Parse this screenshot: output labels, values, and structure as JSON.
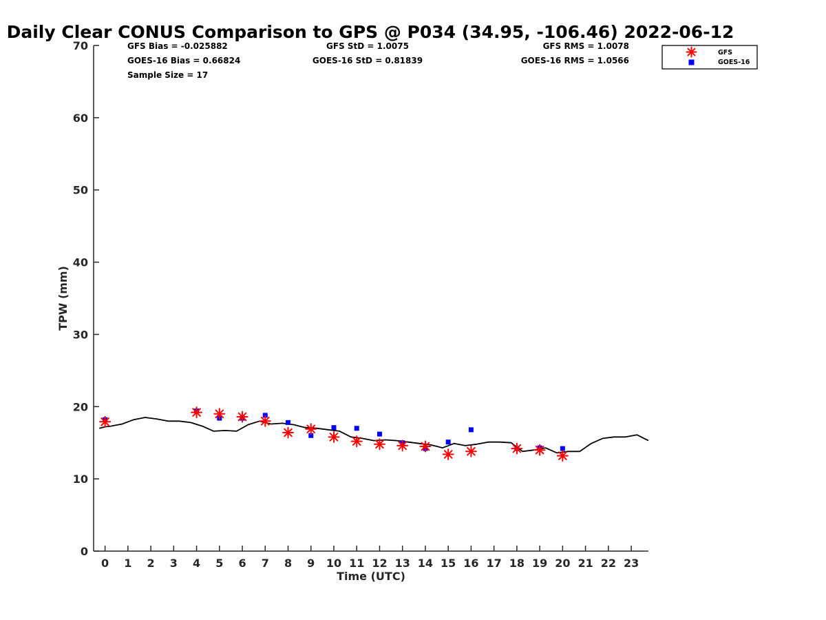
{
  "chart_data": {
    "type": "scatter",
    "title": "Daily Clear CONUS Comparison to GPS @ P034 (34.95, -106.46) 2022-06-12",
    "xlabel": "Time (UTC)",
    "ylabel": "TPW (mm)",
    "xlim": [
      -0.5,
      23.75
    ],
    "ylim": [
      0,
      70
    ],
    "x_ticks": [
      0,
      1,
      2,
      3,
      4,
      5,
      6,
      7,
      8,
      9,
      10,
      11,
      12,
      13,
      14,
      15,
      16,
      17,
      18,
      19,
      20,
      21,
      22,
      23
    ],
    "y_ticks": [
      0,
      10,
      20,
      30,
      40,
      50,
      60,
      70
    ],
    "grid": false,
    "legend_position": "top-right",
    "stats": {
      "gfs_bias": "GFS Bias = -0.025882",
      "goes_bias": "GOES-16 Bias = 0.66824",
      "sample_size": "Sample Size = 17",
      "gfs_std": "GFS StD = 1.0075",
      "goes_std": "GOES-16 StD = 0.81839",
      "gfs_rms": "GFS RMS = 1.0078",
      "goes_rms": "GOES-16 RMS = 1.0566"
    },
    "series": [
      {
        "name": "GFS",
        "marker": "asterisk",
        "color": "#ff0000",
        "x": [
          0,
          4,
          5,
          6,
          7,
          8,
          9,
          10,
          11,
          12,
          13,
          14,
          15,
          16,
          18,
          19,
          20
        ],
        "y": [
          17.9,
          19.2,
          19.0,
          18.6,
          18.0,
          16.4,
          16.9,
          15.8,
          15.2,
          14.8,
          14.6,
          14.5,
          13.4,
          13.8,
          14.2,
          14.0,
          13.2
        ]
      },
      {
        "name": "GOES-16",
        "marker": "square",
        "color": "#0000ff",
        "x": [
          0,
          4,
          5,
          6,
          7,
          8,
          9,
          10,
          11,
          12,
          13,
          14,
          15,
          16,
          18,
          19,
          20
        ],
        "y": [
          18.2,
          19.4,
          18.4,
          18.4,
          18.8,
          17.8,
          16.0,
          17.1,
          17.0,
          16.2,
          15.0,
          14.2,
          15.1,
          16.8,
          14.2,
          14.3,
          14.2
        ]
      }
    ],
    "gps_line": {
      "color": "#000000",
      "x": [
        -0.25,
        0,
        0.25,
        0.75,
        1.25,
        1.75,
        2.25,
        2.75,
        3.25,
        3.75,
        4.25,
        4.75,
        5.25,
        5.75,
        6.25,
        6.75,
        7.25,
        7.75,
        8.25,
        8.75,
        9.25,
        9.75,
        10.25,
        10.75,
        11.25,
        11.75,
        12.25,
        12.75,
        13.25,
        13.75,
        14.25,
        14.75,
        15.25,
        15.75,
        16.25,
        16.75,
        17.25,
        17.75,
        18.25,
        18.75,
        19.25,
        19.75,
        20.25,
        20.75,
        21.25,
        21.75,
        22.25,
        22.75,
        23.25,
        23.75
      ],
      "y": [
        17.0,
        17.2,
        17.3,
        17.6,
        18.2,
        18.5,
        18.3,
        18.0,
        18.0,
        17.8,
        17.3,
        16.6,
        16.7,
        16.6,
        17.5,
        18.0,
        17.6,
        17.7,
        17.5,
        17.1,
        17.0,
        16.8,
        16.6,
        15.8,
        15.6,
        15.3,
        15.4,
        15.3,
        15.1,
        14.9,
        14.7,
        14.3,
        14.9,
        14.6,
        14.8,
        15.1,
        15.1,
        15.0,
        13.8,
        14.0,
        14.3,
        13.6,
        13.8,
        13.8,
        14.9,
        15.6,
        15.8,
        15.8,
        16.1,
        15.3
      ]
    }
  }
}
